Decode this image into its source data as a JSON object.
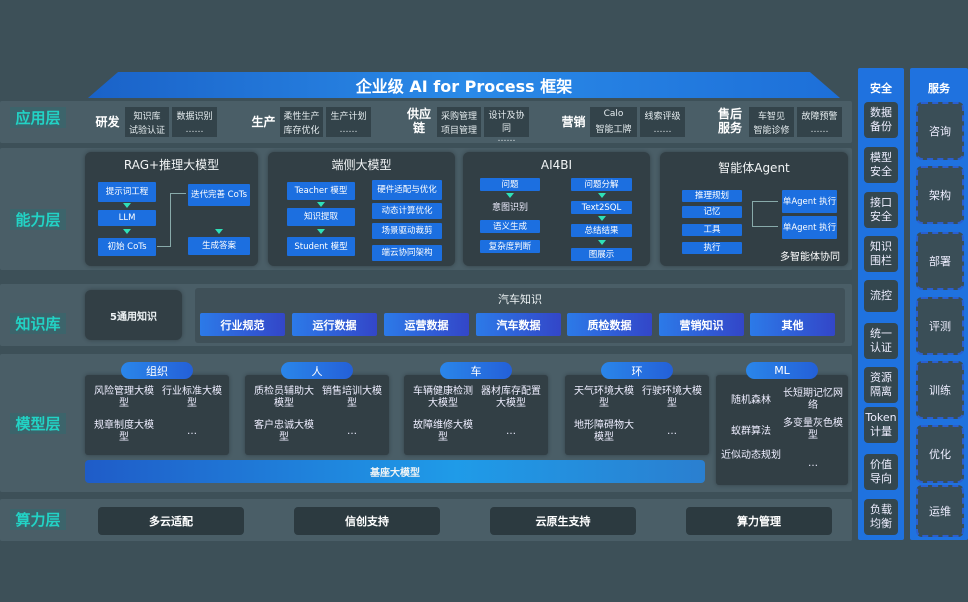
{
  "title": "企业级 AI for Process 框架",
  "layers": {
    "app": "应用层",
    "capability": "能力层",
    "knowledge": "知识库",
    "model": "模型层",
    "compute": "算力层"
  },
  "app": [
    {
      "group": "研发",
      "cells": [
        [
          "知识库",
          "试验认证"
        ],
        [
          "数据识别",
          "……"
        ]
      ]
    },
    {
      "group": "生产",
      "cells": [
        [
          "柔性生产",
          "库存优化"
        ],
        [
          "生产计划",
          "……"
        ]
      ]
    },
    {
      "group": "供应链",
      "cells": [
        [
          "采购管理",
          "项目管理"
        ],
        [
          "设计及协同",
          "……"
        ]
      ]
    },
    {
      "group": "营销",
      "cells": [
        [
          "Calo",
          "智能工牌"
        ],
        [
          "线索评级",
          "……"
        ]
      ]
    },
    {
      "group": "售后服务",
      "cells": [
        [
          "车智见",
          "智能诊修"
        ],
        [
          "故障预警",
          "……"
        ]
      ]
    }
  ],
  "capability": {
    "rag": {
      "title": "RAG+推理大模型",
      "items": [
        "提示词工程",
        "LLM",
        "初始 CoTs",
        "迭代完善 CoTs",
        "生成答案"
      ]
    },
    "edge": {
      "title": "端侧大模型",
      "left": [
        "Teacher 模型",
        "知识提取",
        "Student 模型"
      ],
      "right": [
        "硬件适配与优化",
        "动态计算优化",
        "场景驱动裁剪",
        "端云协同架构"
      ]
    },
    "ai4bi": {
      "title": "AI4BI",
      "left": [
        "问题",
        "意图识别",
        "语义生成",
        "复杂度判断"
      ],
      "right": [
        "问题分解",
        "Text2SQL",
        "总结结果",
        "图展示"
      ]
    },
    "agent": {
      "title": "智能体Agent",
      "left": [
        "推理规划",
        "记忆",
        "工具",
        "执行"
      ],
      "right": [
        "单Agent 执行",
        "单Agent 执行"
      ],
      "footer": "多智能体协同"
    }
  },
  "knowledge": {
    "general": "5通用知识",
    "auto_title": "汽车知识",
    "items": [
      "行业规范",
      "运行数据",
      "运营数据",
      "汽车数据",
      "质检数据",
      "营销知识",
      "其他"
    ]
  },
  "model": {
    "groups": [
      {
        "name": "组织",
        "items": [
          "风险管理大模型",
          "行业标准大模型",
          "规章制度大模型",
          "…"
        ]
      },
      {
        "name": "人",
        "items": [
          "质检员辅助大模型",
          "销售培训大模型",
          "客户忠诚大模型",
          "…"
        ]
      },
      {
        "name": "车",
        "items": [
          "车辆健康检测大模型",
          "器材库存配置大模型",
          "故障维修大模型",
          "…"
        ]
      },
      {
        "name": "环",
        "items": [
          "天气环境大模型",
          "行驶环境大模型",
          "地形障碍物大模型",
          "…"
        ]
      }
    ],
    "ml": {
      "name": "ML",
      "items": [
        "随机森林",
        "长短期记忆网络",
        "蚁群算法",
        "多变量灰色模型",
        "近似动态规划",
        "…"
      ]
    },
    "base": "基座大模型"
  },
  "compute": [
    "多云适配",
    "信创支持",
    "云原生支持",
    "算力管理"
  ],
  "security": {
    "title": "安全",
    "items": [
      "数据备份",
      "模型安全",
      "接口安全",
      "知识围栏",
      "流控",
      "统一认证",
      "资源隔离",
      "Token计量",
      "价值导向",
      "负载均衡"
    ]
  },
  "service": {
    "title": "服务",
    "items": [
      "咨询",
      "架构",
      "部署",
      "评测",
      "训练",
      "优化",
      "运维"
    ]
  }
}
